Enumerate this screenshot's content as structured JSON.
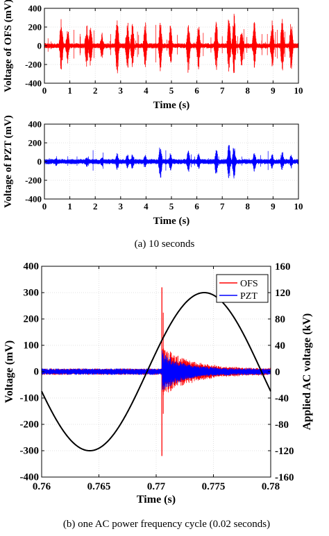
{
  "captions": {
    "a": "(a) 10 seconds",
    "b": "(b) one AC power frequency cycle (0.02 seconds)"
  },
  "colors": {
    "ofs": "#ff0000",
    "pzt": "#0000ff",
    "ac": "#000000",
    "zero_ofs": "#ff0000",
    "zero_pzt": "#0000ff"
  },
  "chart_data": [
    {
      "type": "line",
      "xlabel": "Time (s)",
      "ylabel": "Voltage of OFS (mV)",
      "xlim": [
        0,
        10
      ],
      "ylim": [
        -400,
        400
      ],
      "xticks": [
        "0",
        "1",
        "2",
        "3",
        "4",
        "5",
        "6",
        "7",
        "8",
        "9",
        "10"
      ],
      "yticks": [
        "400",
        "200",
        "0",
        "-200",
        "-400"
      ],
      "grid": true,
      "series": [
        {
          "color": "#ff0000",
          "burst_times": [
            0.7,
            0.95,
            1.7,
            1.85,
            2.3,
            2.9,
            3.3,
            3.5,
            4.0,
            4.6,
            5.0,
            5.7,
            6.1,
            6.8,
            7.3,
            7.5,
            7.8,
            8.3,
            9.0,
            9.4,
            9.75
          ],
          "burst_peak_mV": [
            300,
            200,
            250,
            220,
            150,
            330,
            300,
            260,
            270,
            280,
            250,
            300,
            260,
            280,
            330,
            350,
            220,
            260,
            280,
            290,
            280
          ]
        }
      ]
    },
    {
      "type": "line",
      "xlabel": "Time (s)",
      "ylabel": "Voltage of PZT (mV)",
      "xlim": [
        0,
        10
      ],
      "ylim": [
        -400,
        400
      ],
      "xticks": [
        "0",
        "1",
        "2",
        "3",
        "4",
        "5",
        "6",
        "7",
        "8",
        "9",
        "10"
      ],
      "yticks": [
        "400",
        "200",
        "0",
        "-200",
        "-400"
      ],
      "grid": true,
      "series": [
        {
          "color": "#0000ff",
          "burst_times": [
            0.5,
            1.7,
            2.3,
            2.9,
            3.3,
            3.5,
            4.0,
            4.6,
            5.0,
            5.7,
            6.1,
            6.8,
            7.3,
            7.5,
            8.3,
            9.0,
            9.4,
            9.75
          ],
          "burst_peak_mV": [
            50,
            60,
            60,
            100,
            90,
            90,
            80,
            200,
            100,
            130,
            90,
            160,
            200,
            200,
            110,
            90,
            110,
            80
          ]
        }
      ]
    },
    {
      "type": "line",
      "xlabel": "Time (s)",
      "ylabel": "Voltage (mV)",
      "y2label": "Applied AC voltage (kV)",
      "xlim": [
        0.76,
        0.78
      ],
      "ylim": [
        -400,
        400
      ],
      "y2lim": [
        -160,
        160
      ],
      "xticks": [
        "0.76",
        "0.765",
        "0.77",
        "0.775",
        "0.78"
      ],
      "yticks": [
        "400",
        "300",
        "200",
        "100",
        "0",
        "-100",
        "-200",
        "-300",
        "-400"
      ],
      "y2ticks": [
        "160",
        "120",
        "80",
        "40",
        "0",
        "-40",
        "-80",
        "-120",
        "-160"
      ],
      "grid": true,
      "legend": "top-right",
      "series": [
        {
          "name": "OFS",
          "color": "#ff0000",
          "pulse_time_s": 0.7705,
          "pulse_peak_mV": 320,
          "pulse_min_mV": -320
        },
        {
          "name": "PZT",
          "color": "#0000ff",
          "pulse_time_s": 0.7705,
          "pulse_peak_mV": 95,
          "pulse_min_mV": -60
        },
        {
          "color": "#000000",
          "axis": "right",
          "waveform": "sine",
          "amplitude_kV": 120,
          "peak_time_s": 0.7742,
          "trough_time_s": 0.7642
        }
      ]
    }
  ]
}
